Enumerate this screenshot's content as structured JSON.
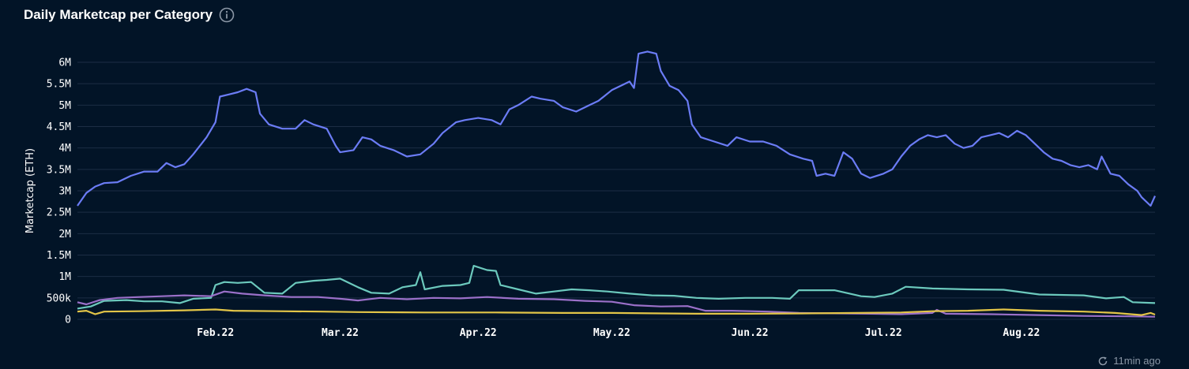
{
  "header": {
    "title": "Daily Marketcap per Category",
    "info_icon": "info-icon"
  },
  "footer": {
    "updated": "11min ago",
    "icon": "refresh-icon"
  },
  "colors": {
    "background": "#021427",
    "grid": "#1c2d44",
    "series1": "#6b7cf5",
    "series2": "#6cc9bd",
    "series3": "#9b70c9",
    "series4": "#e3c548"
  },
  "chart_data": {
    "type": "line",
    "title": "Daily Marketcap per Category",
    "ylabel": "Marketcap (ETH)",
    "xlabel": "",
    "ylim": [
      0,
      6000000
    ],
    "x_range": [
      "2022-01-01",
      "2022-08-31"
    ],
    "y_ticks": [
      {
        "value": 0,
        "label": "0"
      },
      {
        "value": 500000,
        "label": "500k"
      },
      {
        "value": 1000000,
        "label": "1M"
      },
      {
        "value": 1500000,
        "label": "1.5M"
      },
      {
        "value": 2000000,
        "label": "2M"
      },
      {
        "value": 2500000,
        "label": "2.5M"
      },
      {
        "value": 3000000,
        "label": "3M"
      },
      {
        "value": 3500000,
        "label": "3.5M"
      },
      {
        "value": 4000000,
        "label": "4M"
      },
      {
        "value": 4500000,
        "label": "4.5M"
      },
      {
        "value": 5000000,
        "label": "5M"
      },
      {
        "value": 5500000,
        "label": "5.5M"
      },
      {
        "value": 6000000,
        "label": "6M"
      }
    ],
    "x_ticks": [
      {
        "date": "2022-02-01",
        "label": "Feb.22"
      },
      {
        "date": "2022-03-01",
        "label": "Mar.22"
      },
      {
        "date": "2022-04-01",
        "label": "Apr.22"
      },
      {
        "date": "2022-05-01",
        "label": "May.22"
      },
      {
        "date": "2022-06-01",
        "label": "Jun.22"
      },
      {
        "date": "2022-07-01",
        "label": "Jul.22"
      },
      {
        "date": "2022-08-01",
        "label": "Aug.22"
      }
    ],
    "grid": true,
    "legend": "none",
    "series": [
      {
        "color": "#6b7cf5",
        "points": [
          [
            "2022-01-01",
            2650000
          ],
          [
            "2022-01-03",
            2950000
          ],
          [
            "2022-01-05",
            3100000
          ],
          [
            "2022-01-07",
            3180000
          ],
          [
            "2022-01-10",
            3200000
          ],
          [
            "2022-01-13",
            3350000
          ],
          [
            "2022-01-16",
            3450000
          ],
          [
            "2022-01-19",
            3450000
          ],
          [
            "2022-01-21",
            3650000
          ],
          [
            "2022-01-23",
            3550000
          ],
          [
            "2022-01-25",
            3620000
          ],
          [
            "2022-01-27",
            3850000
          ],
          [
            "2022-01-30",
            4250000
          ],
          [
            "2022-02-01",
            4600000
          ],
          [
            "2022-02-02",
            5200000
          ],
          [
            "2022-02-04",
            5250000
          ],
          [
            "2022-02-06",
            5300000
          ],
          [
            "2022-02-08",
            5380000
          ],
          [
            "2022-02-10",
            5300000
          ],
          [
            "2022-02-11",
            4800000
          ],
          [
            "2022-02-13",
            4550000
          ],
          [
            "2022-02-16",
            4450000
          ],
          [
            "2022-02-19",
            4450000
          ],
          [
            "2022-02-21",
            4650000
          ],
          [
            "2022-02-23",
            4550000
          ],
          [
            "2022-02-26",
            4450000
          ],
          [
            "2022-02-28",
            4050000
          ],
          [
            "2022-03-01",
            3900000
          ],
          [
            "2022-03-04",
            3950000
          ],
          [
            "2022-03-06",
            4250000
          ],
          [
            "2022-03-08",
            4200000
          ],
          [
            "2022-03-10",
            4050000
          ],
          [
            "2022-03-13",
            3950000
          ],
          [
            "2022-03-16",
            3800000
          ],
          [
            "2022-03-19",
            3850000
          ],
          [
            "2022-03-22",
            4100000
          ],
          [
            "2022-03-24",
            4350000
          ],
          [
            "2022-03-27",
            4600000
          ],
          [
            "2022-03-29",
            4650000
          ],
          [
            "2022-04-01",
            4700000
          ],
          [
            "2022-04-04",
            4650000
          ],
          [
            "2022-04-06",
            4550000
          ],
          [
            "2022-04-08",
            4900000
          ],
          [
            "2022-04-10",
            5000000
          ],
          [
            "2022-04-13",
            5200000
          ],
          [
            "2022-04-15",
            5150000
          ],
          [
            "2022-04-18",
            5100000
          ],
          [
            "2022-04-20",
            4950000
          ],
          [
            "2022-04-23",
            4850000
          ],
          [
            "2022-04-26",
            5000000
          ],
          [
            "2022-04-28",
            5100000
          ],
          [
            "2022-05-01",
            5350000
          ],
          [
            "2022-05-03",
            5450000
          ],
          [
            "2022-05-05",
            5550000
          ],
          [
            "2022-05-06",
            5400000
          ],
          [
            "2022-05-07",
            6200000
          ],
          [
            "2022-05-09",
            6250000
          ],
          [
            "2022-05-11",
            6200000
          ],
          [
            "2022-05-12",
            5800000
          ],
          [
            "2022-05-14",
            5450000
          ],
          [
            "2022-05-16",
            5350000
          ],
          [
            "2022-05-18",
            5100000
          ],
          [
            "2022-05-19",
            4550000
          ],
          [
            "2022-05-21",
            4250000
          ],
          [
            "2022-05-24",
            4150000
          ],
          [
            "2022-05-27",
            4050000
          ],
          [
            "2022-05-29",
            4250000
          ],
          [
            "2022-06-01",
            4150000
          ],
          [
            "2022-06-04",
            4150000
          ],
          [
            "2022-06-07",
            4050000
          ],
          [
            "2022-06-10",
            3850000
          ],
          [
            "2022-06-13",
            3750000
          ],
          [
            "2022-06-15",
            3700000
          ],
          [
            "2022-06-16",
            3350000
          ],
          [
            "2022-06-18",
            3400000
          ],
          [
            "2022-06-20",
            3350000
          ],
          [
            "2022-06-22",
            3900000
          ],
          [
            "2022-06-24",
            3750000
          ],
          [
            "2022-06-26",
            3400000
          ],
          [
            "2022-06-28",
            3300000
          ],
          [
            "2022-07-01",
            3400000
          ],
          [
            "2022-07-03",
            3500000
          ],
          [
            "2022-07-05",
            3800000
          ],
          [
            "2022-07-07",
            4050000
          ],
          [
            "2022-07-09",
            4200000
          ],
          [
            "2022-07-11",
            4300000
          ],
          [
            "2022-07-13",
            4250000
          ],
          [
            "2022-07-15",
            4300000
          ],
          [
            "2022-07-17",
            4100000
          ],
          [
            "2022-07-19",
            4000000
          ],
          [
            "2022-07-21",
            4050000
          ],
          [
            "2022-07-23",
            4250000
          ],
          [
            "2022-07-25",
            4300000
          ],
          [
            "2022-07-27",
            4350000
          ],
          [
            "2022-07-29",
            4250000
          ],
          [
            "2022-07-31",
            4400000
          ],
          [
            "2022-08-02",
            4300000
          ],
          [
            "2022-08-04",
            4100000
          ],
          [
            "2022-08-06",
            3900000
          ],
          [
            "2022-08-08",
            3750000
          ],
          [
            "2022-08-10",
            3700000
          ],
          [
            "2022-08-12",
            3600000
          ],
          [
            "2022-08-14",
            3550000
          ],
          [
            "2022-08-16",
            3600000
          ],
          [
            "2022-08-18",
            3500000
          ],
          [
            "2022-08-19",
            3800000
          ],
          [
            "2022-08-21",
            3400000
          ],
          [
            "2022-08-23",
            3350000
          ],
          [
            "2022-08-25",
            3150000
          ],
          [
            "2022-08-27",
            3000000
          ],
          [
            "2022-08-28",
            2850000
          ],
          [
            "2022-08-30",
            2650000
          ],
          [
            "2022-08-31",
            2880000
          ]
        ]
      },
      {
        "color": "#6cc9bd",
        "points": [
          [
            "2022-01-01",
            250000
          ],
          [
            "2022-01-04",
            300000
          ],
          [
            "2022-01-07",
            430000
          ],
          [
            "2022-01-12",
            450000
          ],
          [
            "2022-01-16",
            420000
          ],
          [
            "2022-01-20",
            420000
          ],
          [
            "2022-01-24",
            380000
          ],
          [
            "2022-01-27",
            480000
          ],
          [
            "2022-01-31",
            500000
          ],
          [
            "2022-02-01",
            800000
          ],
          [
            "2022-02-03",
            870000
          ],
          [
            "2022-02-06",
            850000
          ],
          [
            "2022-02-09",
            870000
          ],
          [
            "2022-02-12",
            620000
          ],
          [
            "2022-02-16",
            600000
          ],
          [
            "2022-02-19",
            850000
          ],
          [
            "2022-02-23",
            900000
          ],
          [
            "2022-02-26",
            920000
          ],
          [
            "2022-03-01",
            950000
          ],
          [
            "2022-03-05",
            750000
          ],
          [
            "2022-03-08",
            620000
          ],
          [
            "2022-03-12",
            600000
          ],
          [
            "2022-03-15",
            750000
          ],
          [
            "2022-03-18",
            800000
          ],
          [
            "2022-03-19",
            1100000
          ],
          [
            "2022-03-20",
            700000
          ],
          [
            "2022-03-24",
            780000
          ],
          [
            "2022-03-28",
            800000
          ],
          [
            "2022-03-30",
            850000
          ],
          [
            "2022-03-31",
            1250000
          ],
          [
            "2022-04-03",
            1150000
          ],
          [
            "2022-04-05",
            1130000
          ],
          [
            "2022-04-06",
            800000
          ],
          [
            "2022-04-10",
            700000
          ],
          [
            "2022-04-14",
            600000
          ],
          [
            "2022-04-18",
            650000
          ],
          [
            "2022-04-22",
            700000
          ],
          [
            "2022-04-26",
            680000
          ],
          [
            "2022-04-30",
            650000
          ],
          [
            "2022-05-05",
            600000
          ],
          [
            "2022-05-10",
            560000
          ],
          [
            "2022-05-15",
            550000
          ],
          [
            "2022-05-20",
            500000
          ],
          [
            "2022-05-25",
            480000
          ],
          [
            "2022-05-31",
            500000
          ],
          [
            "2022-06-06",
            500000
          ],
          [
            "2022-06-10",
            480000
          ],
          [
            "2022-06-12",
            680000
          ],
          [
            "2022-06-20",
            680000
          ],
          [
            "2022-06-26",
            540000
          ],
          [
            "2022-06-29",
            520000
          ],
          [
            "2022-07-03",
            600000
          ],
          [
            "2022-07-06",
            760000
          ],
          [
            "2022-07-12",
            720000
          ],
          [
            "2022-07-20",
            700000
          ],
          [
            "2022-07-28",
            690000
          ],
          [
            "2022-08-05",
            580000
          ],
          [
            "2022-08-15",
            560000
          ],
          [
            "2022-08-20",
            490000
          ],
          [
            "2022-08-24",
            520000
          ],
          [
            "2022-08-26",
            400000
          ],
          [
            "2022-08-31",
            380000
          ]
        ]
      },
      {
        "color": "#9b70c9",
        "points": [
          [
            "2022-01-01",
            400000
          ],
          [
            "2022-01-03",
            350000
          ],
          [
            "2022-01-06",
            450000
          ],
          [
            "2022-01-10",
            500000
          ],
          [
            "2022-01-15",
            520000
          ],
          [
            "2022-01-20",
            540000
          ],
          [
            "2022-01-25",
            560000
          ],
          [
            "2022-01-31",
            540000
          ],
          [
            "2022-02-03",
            650000
          ],
          [
            "2022-02-07",
            600000
          ],
          [
            "2022-02-12",
            560000
          ],
          [
            "2022-02-18",
            520000
          ],
          [
            "2022-02-24",
            520000
          ],
          [
            "2022-03-01",
            480000
          ],
          [
            "2022-03-05",
            440000
          ],
          [
            "2022-03-10",
            500000
          ],
          [
            "2022-03-16",
            470000
          ],
          [
            "2022-03-22",
            500000
          ],
          [
            "2022-03-28",
            490000
          ],
          [
            "2022-04-03",
            520000
          ],
          [
            "2022-04-10",
            480000
          ],
          [
            "2022-04-18",
            470000
          ],
          [
            "2022-04-25",
            430000
          ],
          [
            "2022-05-01",
            410000
          ],
          [
            "2022-05-06",
            330000
          ],
          [
            "2022-05-12",
            300000
          ],
          [
            "2022-05-18",
            310000
          ],
          [
            "2022-05-22",
            200000
          ],
          [
            "2022-05-28",
            200000
          ],
          [
            "2022-06-05",
            180000
          ],
          [
            "2022-06-12",
            150000
          ],
          [
            "2022-06-20",
            140000
          ],
          [
            "2022-06-28",
            130000
          ],
          [
            "2022-07-05",
            120000
          ],
          [
            "2022-07-12",
            150000
          ],
          [
            "2022-07-13",
            220000
          ],
          [
            "2022-07-15",
            130000
          ],
          [
            "2022-07-25",
            120000
          ],
          [
            "2022-08-05",
            100000
          ],
          [
            "2022-08-15",
            80000
          ],
          [
            "2022-08-25",
            70000
          ],
          [
            "2022-08-31",
            60000
          ]
        ]
      },
      {
        "color": "#e3c548",
        "points": [
          [
            "2022-01-01",
            180000
          ],
          [
            "2022-01-03",
            200000
          ],
          [
            "2022-01-05",
            120000
          ],
          [
            "2022-01-07",
            180000
          ],
          [
            "2022-01-15",
            190000
          ],
          [
            "2022-01-25",
            210000
          ],
          [
            "2022-02-01",
            230000
          ],
          [
            "2022-02-05",
            200000
          ],
          [
            "2022-02-15",
            190000
          ],
          [
            "2022-02-25",
            180000
          ],
          [
            "2022-03-05",
            170000
          ],
          [
            "2022-03-20",
            160000
          ],
          [
            "2022-04-05",
            160000
          ],
          [
            "2022-04-20",
            150000
          ],
          [
            "2022-05-01",
            150000
          ],
          [
            "2022-05-10",
            140000
          ],
          [
            "2022-05-20",
            130000
          ],
          [
            "2022-06-01",
            130000
          ],
          [
            "2022-06-15",
            140000
          ],
          [
            "2022-06-25",
            150000
          ],
          [
            "2022-07-05",
            160000
          ],
          [
            "2022-07-12",
            190000
          ],
          [
            "2022-07-20",
            200000
          ],
          [
            "2022-07-28",
            230000
          ],
          [
            "2022-08-05",
            200000
          ],
          [
            "2022-08-15",
            180000
          ],
          [
            "2022-08-22",
            150000
          ],
          [
            "2022-08-28",
            100000
          ],
          [
            "2022-08-30",
            150000
          ],
          [
            "2022-08-31",
            110000
          ]
        ]
      }
    ]
  }
}
